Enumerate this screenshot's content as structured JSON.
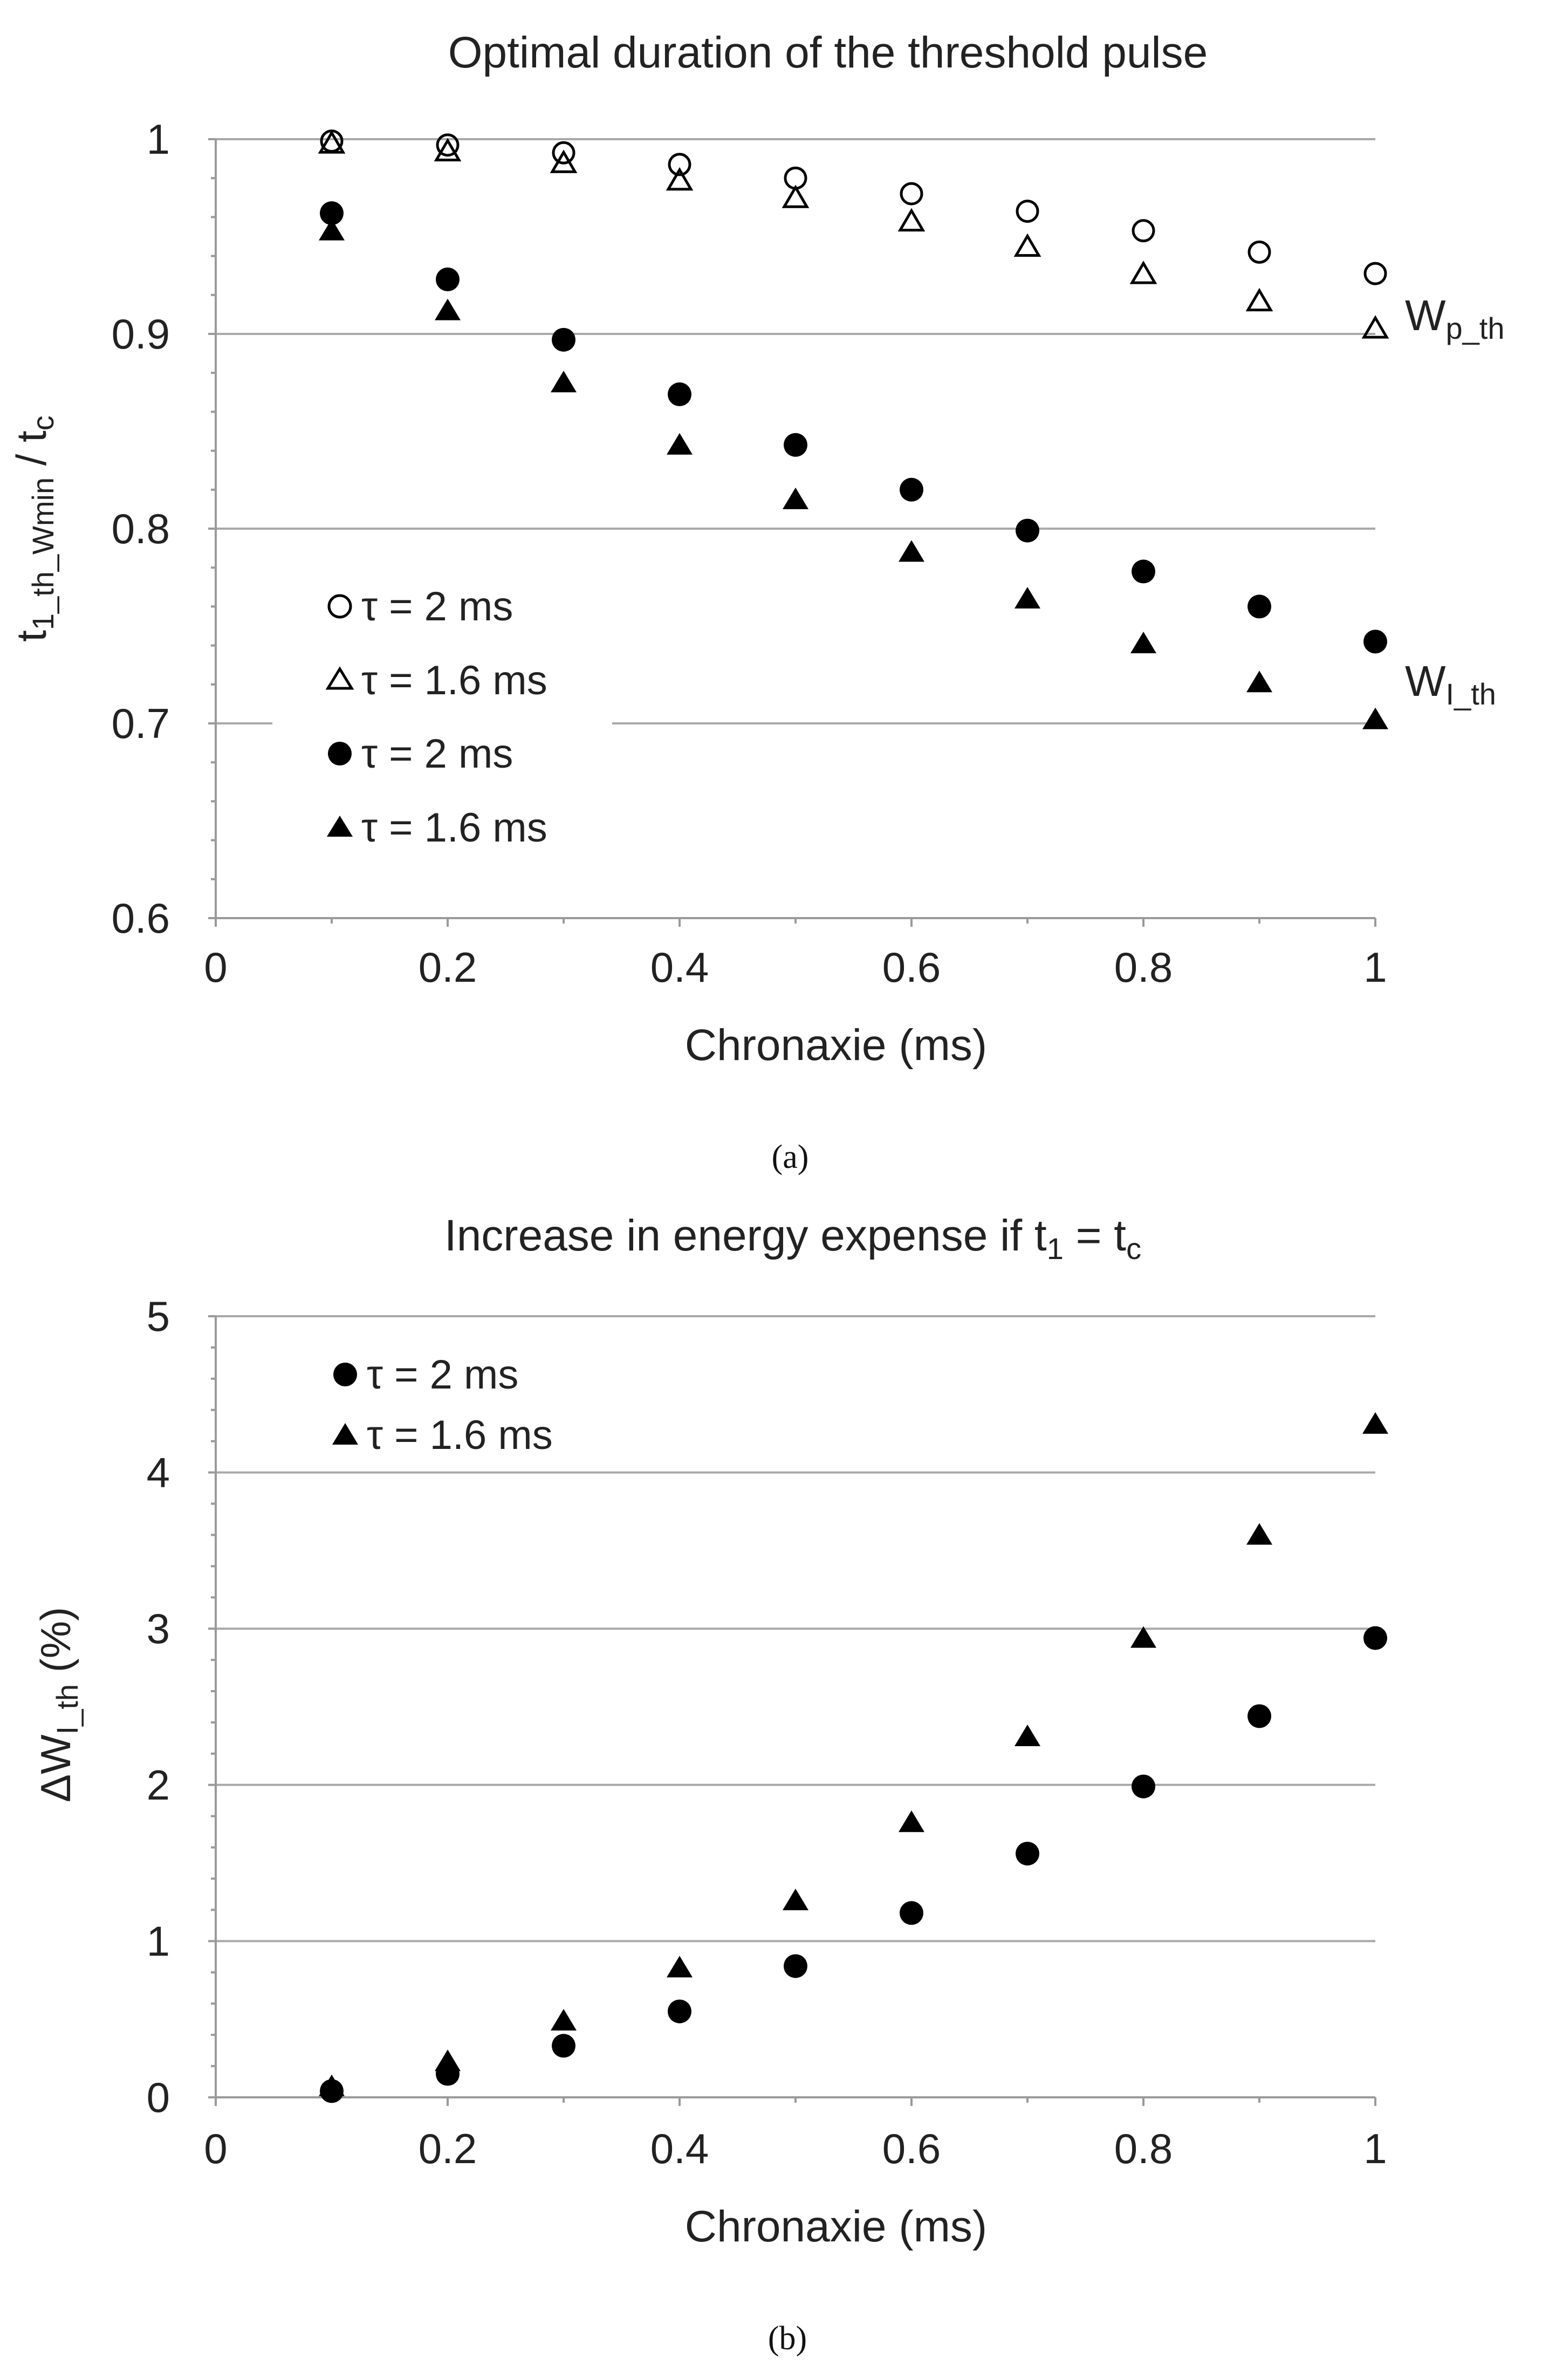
{
  "chart_data": [
    {
      "type": "scatter",
      "title": "Optimal duration of the threshold pulse",
      "xlabel": "Chronaxie (ms)",
      "ylabel": "t1_th_Wmin / tc",
      "xlim": [
        0,
        1
      ],
      "ylim": [
        0.6,
        1.0
      ],
      "xticks": [
        "0",
        "0.2",
        "0.4",
        "0.6",
        "0.8",
        "1"
      ],
      "yticks": [
        "0.6",
        "0.7",
        "0.8",
        "0.9",
        "1"
      ],
      "grid": "horizontal",
      "legend": [
        "τ = 2 ms",
        "τ = 1.6 ms",
        "τ = 2 ms",
        "τ = 1.6 ms"
      ],
      "panel_label": "(a)",
      "series_labels": [
        "W",
        "p_th",
        "W",
        "I_th"
      ],
      "series": [
        {
          "name": "τ = 2 ms",
          "group": "Wp_th",
          "marker": "circle-open",
          "x": [
            0.1,
            0.2,
            0.3,
            0.4,
            0.5,
            0.6,
            0.7,
            0.8,
            0.9,
            1.0
          ],
          "y": [
            0.999,
            0.997,
            0.993,
            0.987,
            0.98,
            0.972,
            0.963,
            0.953,
            0.942,
            0.931
          ]
        },
        {
          "name": "τ = 1.6 ms",
          "group": "Wp_th",
          "marker": "triangle-open",
          "x": [
            0.1,
            0.2,
            0.3,
            0.4,
            0.5,
            0.6,
            0.7,
            0.8,
            0.9,
            1.0
          ],
          "y": [
            0.998,
            0.994,
            0.988,
            0.979,
            0.97,
            0.958,
            0.945,
            0.931,
            0.917,
            0.903
          ]
        },
        {
          "name": "τ = 2 ms",
          "group": "WI_th",
          "marker": "circle-filled",
          "x": [
            0.1,
            0.2,
            0.3,
            0.4,
            0.5,
            0.6,
            0.7,
            0.8,
            0.9,
            1.0
          ],
          "y": [
            0.962,
            0.928,
            0.897,
            0.869,
            0.843,
            0.82,
            0.799,
            0.778,
            0.76,
            0.742
          ]
        },
        {
          "name": "τ = 1.6 ms",
          "group": "WI_th",
          "marker": "triangle-filled",
          "x": [
            0.1,
            0.2,
            0.3,
            0.4,
            0.5,
            0.6,
            0.7,
            0.8,
            0.9,
            1.0
          ],
          "y": [
            0.953,
            0.912,
            0.875,
            0.843,
            0.815,
            0.788,
            0.764,
            0.741,
            0.721,
            0.702
          ]
        }
      ]
    },
    {
      "type": "scatter",
      "title": "Increase in energy expense if t",
      "title_sub": "1",
      "title_eq": " = t",
      "title_sub2": "c",
      "xlabel": "Chronaxie (ms)",
      "ylabel": "ΔWI_th (%)",
      "xlim": [
        0,
        1
      ],
      "ylim": [
        0,
        5
      ],
      "xticks": [
        "0",
        "0.2",
        "0.4",
        "0.6",
        "0.8",
        "1"
      ],
      "yticks": [
        "0",
        "1",
        "2",
        "3",
        "4",
        "5"
      ],
      "grid": "horizontal",
      "legend": [
        "τ = 2 ms",
        "τ = 1.6 ms"
      ],
      "panel_label": "(b)",
      "series": [
        {
          "name": "τ = 2 ms",
          "marker": "circle-filled",
          "x": [
            0.1,
            0.2,
            0.3,
            0.4,
            0.5,
            0.6,
            0.7,
            0.8,
            0.9,
            1.0
          ],
          "y": [
            0.04,
            0.15,
            0.33,
            0.55,
            0.84,
            1.18,
            1.56,
            1.99,
            2.44,
            2.94
          ]
        },
        {
          "name": "τ = 1.6 ms",
          "marker": "triangle-filled",
          "x": [
            0.1,
            0.2,
            0.3,
            0.4,
            0.5,
            0.6,
            0.7,
            0.8,
            0.9,
            1.0
          ],
          "y": [
            0.07,
            0.23,
            0.49,
            0.83,
            1.26,
            1.76,
            2.31,
            2.94,
            3.6,
            4.31
          ]
        }
      ]
    }
  ],
  "labels": {
    "a_ylabel_main": "t",
    "a_ylabel_sub": "1_th_Wmin",
    "a_ylabel_mid": " / t",
    "a_ylabel_sub2": "c",
    "b_ylabel_main": "ΔW",
    "b_ylabel_sub": "I_th",
    "b_ylabel_end": " (%)"
  }
}
